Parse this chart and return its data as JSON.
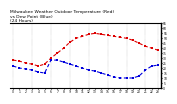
{
  "title": "Milwaukee Weather Outdoor Temperature (Red)\nvs Dew Point (Blue)\n(24 Hours)",
  "title_fontsize": 3.2,
  "background_color": "#ffffff",
  "plot_bg_color": "#ffffff",
  "grid_color": "#888888",
  "hours": [
    0,
    1,
    2,
    3,
    4,
    5,
    6,
    7,
    8,
    9,
    10,
    11,
    12,
    13,
    14,
    15,
    16,
    17,
    18,
    19,
    20,
    21,
    22,
    23
  ],
  "temp": [
    28,
    27,
    25,
    24,
    22,
    24,
    30,
    35,
    40,
    46,
    50,
    52,
    54,
    55,
    54,
    53,
    52,
    51,
    50,
    48,
    45,
    42,
    40,
    38
  ],
  "dewpoint": [
    22,
    20,
    19,
    18,
    16,
    15,
    28,
    28,
    26,
    24,
    22,
    20,
    18,
    17,
    15,
    13,
    11,
    10,
    10,
    10,
    12,
    18,
    22,
    23
  ],
  "temp_color": "#dd0000",
  "dew_color": "#0000dd",
  "ylim_min": 0,
  "ylim_max": 65,
  "ytick_values": [
    65,
    60,
    55,
    50,
    45,
    40,
    35,
    30,
    25,
    20,
    15,
    10,
    5,
    0
  ],
  "ytick_labels": [
    "65",
    "60",
    "55",
    "50",
    "45",
    "40",
    "35",
    "30",
    "25",
    "20",
    "15",
    "10",
    "5",
    "0"
  ],
  "vgrid_hours": [
    0,
    3,
    6,
    9,
    12,
    15,
    18,
    21,
    23
  ],
  "line_width": 0.8,
  "marker_size": 1.5,
  "tick_labelsize": 2.2,
  "dashes": [
    3,
    2
  ]
}
